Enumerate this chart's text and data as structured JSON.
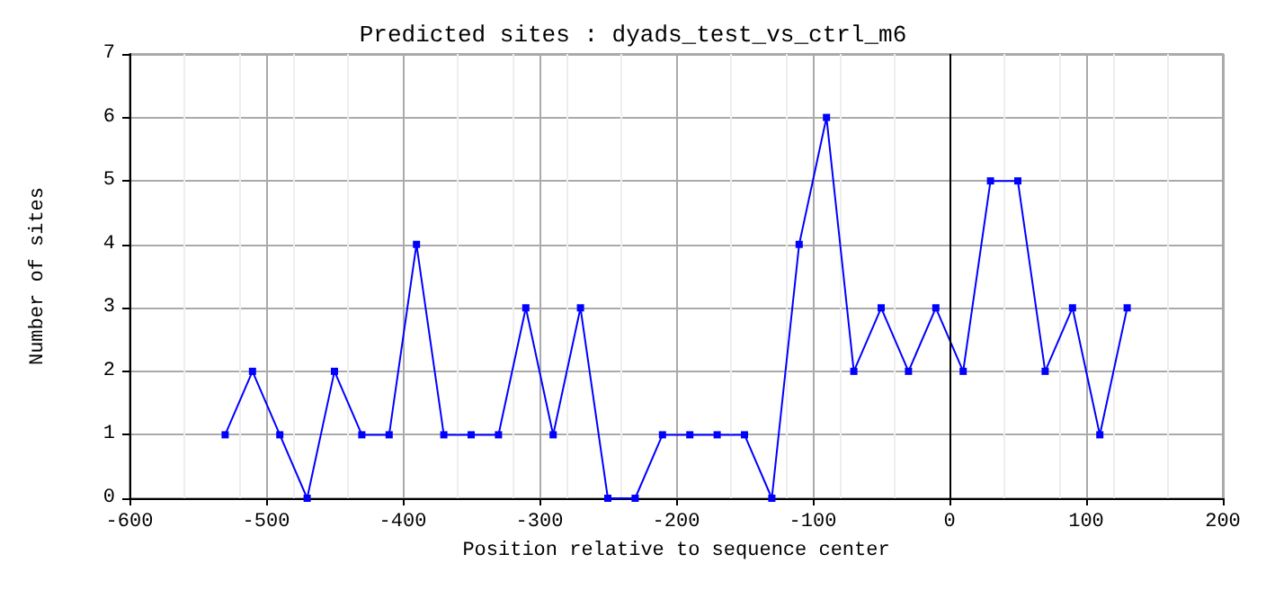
{
  "chart_data": {
    "type": "line",
    "title": "Predicted sites : dyads_test_vs_ctrl_m6",
    "xlabel": "Position relative to sequence center",
    "ylabel": "Number of sites",
    "x": [
      -530,
      -510,
      -490,
      -470,
      -450,
      -430,
      -410,
      -390,
      -370,
      -350,
      -330,
      -310,
      -290,
      -270,
      -250,
      -230,
      -210,
      -190,
      -170,
      -150,
      -130,
      -110,
      -90,
      -70,
      -50,
      -30,
      -10,
      10,
      30,
      50,
      70,
      90,
      110,
      130
    ],
    "series": [
      {
        "color": "#0000ff",
        "values": [
          1,
          2,
          1,
          0,
          2,
          1,
          1,
          4,
          1,
          1,
          1,
          3,
          1,
          3,
          0,
          0,
          1,
          1,
          1,
          1,
          0,
          4,
          6,
          2,
          3,
          2,
          3,
          2,
          5,
          5,
          2,
          3,
          1,
          3
        ]
      }
    ],
    "xlim": [
      -600,
      200
    ],
    "xticks": [
      -600,
      -500,
      -400,
      -300,
      -200,
      -100,
      0,
      100,
      200
    ],
    "ylim": [
      0,
      7
    ],
    "yticks": [
      0,
      1,
      2,
      3,
      4,
      5,
      6,
      7
    ],
    "ref_lines": [
      {
        "axis": "x",
        "value": 0,
        "color": "#000000"
      }
    ],
    "grid": true,
    "marker": "square",
    "line_style": "solid"
  }
}
